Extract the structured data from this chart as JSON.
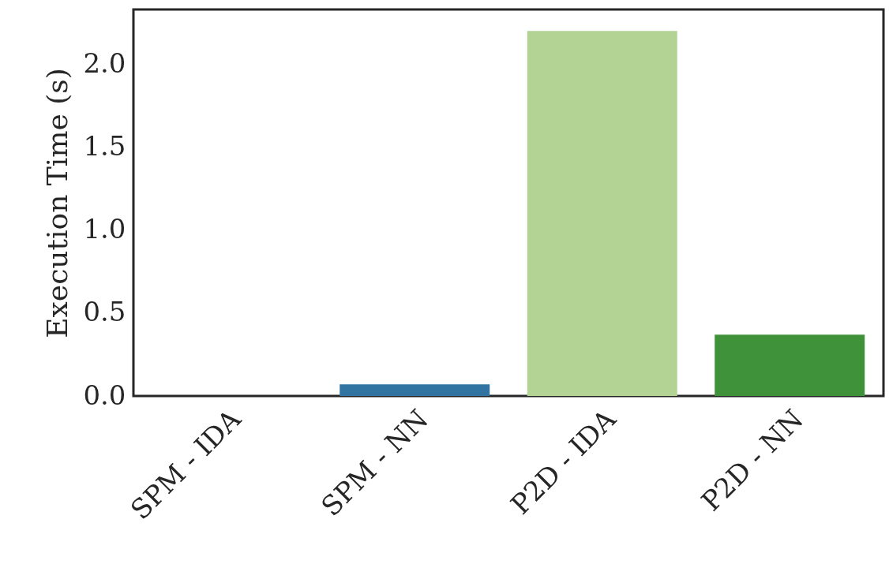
{
  "chart_data": {
    "type": "bar",
    "ylabel": "Execution Time (s)",
    "categories": [
      "SPM - IDA",
      "SPM - NN",
      "P2D - IDA",
      "P2D - NN"
    ],
    "values": [
      0,
      0.07,
      2.2,
      0.37
    ],
    "colors": [
      "#a6c8de",
      "#3274a1",
      "#b3d394",
      "#3f923a"
    ],
    "ylim": [
      0,
      2.33
    ],
    "yticks": [
      {
        "value": 0,
        "label": "0.0"
      },
      0.5,
      {
        "value": 1,
        "label": "1.0"
      },
      1.5,
      {
        "value": 2,
        "label": "2.0"
      }
    ],
    "grid": false
  }
}
